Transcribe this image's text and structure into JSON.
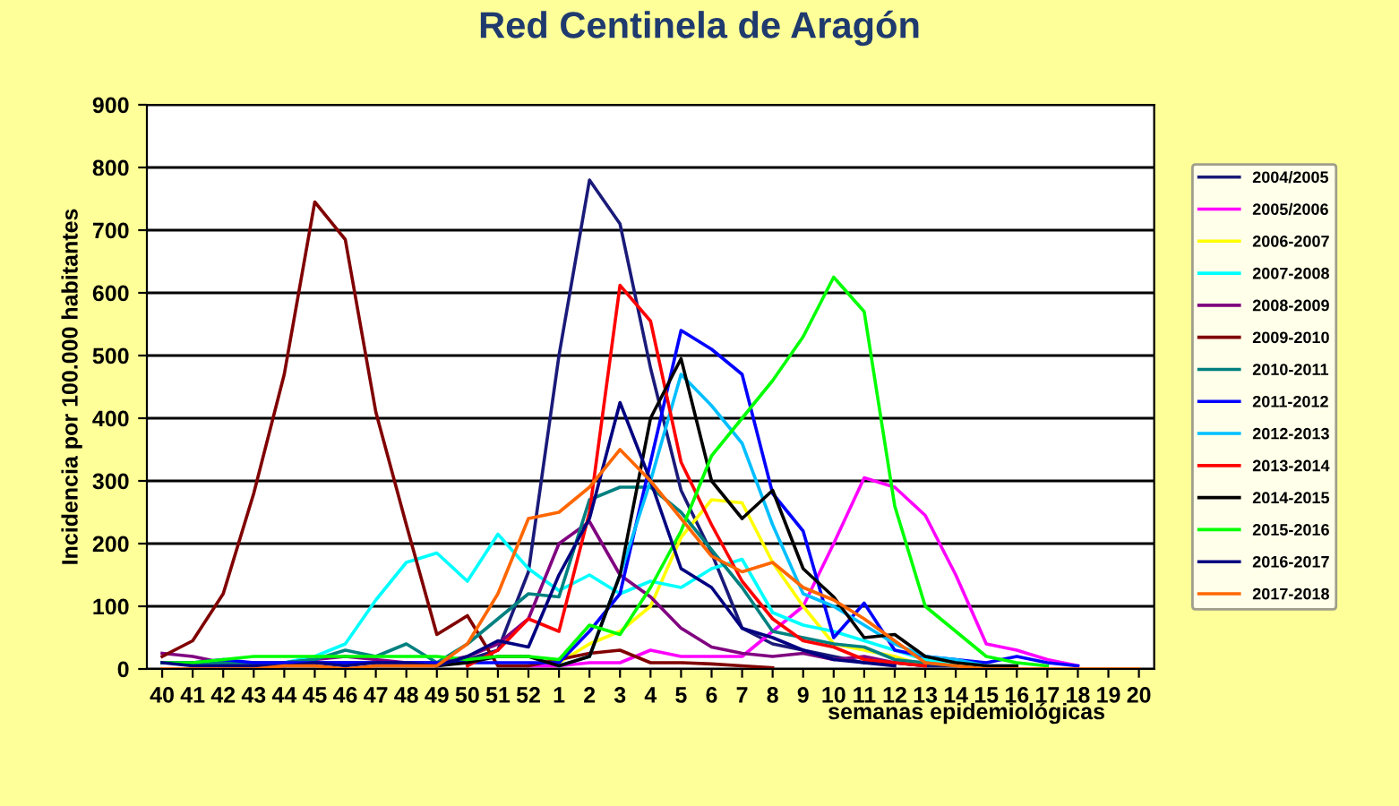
{
  "chart_data": {
    "type": "line",
    "title": "Red Centinela de Aragón",
    "xlabel": "semanas epidemiológicas",
    "ylabel": "Incidencia por 100.000 habitantes",
    "categories": [
      "40",
      "41",
      "42",
      "43",
      "44",
      "45",
      "46",
      "47",
      "48",
      "49",
      "50",
      "51",
      "52",
      "1",
      "2",
      "3",
      "4",
      "5",
      "6",
      "7",
      "8",
      "9",
      "10",
      "11",
      "12",
      "13",
      "14",
      "15",
      "16",
      "17",
      "18",
      "19",
      "20"
    ],
    "ylim": [
      0,
      900
    ],
    "yticks": [
      0,
      100,
      200,
      300,
      400,
      500,
      600,
      700,
      800,
      900
    ],
    "grid": "y",
    "legend": "right",
    "marker": "none",
    "line_style": "solid",
    "series": [
      {
        "name": "2004/2005",
        "color": "#1a1a7a",
        "values": [
          10,
          10,
          10,
          10,
          10,
          10,
          10,
          10,
          10,
          10,
          15,
          30,
          155,
          500,
          780,
          710,
          480,
          285,
          185,
          65,
          40,
          30,
          20,
          10,
          10,
          5,
          5,
          null,
          null,
          null,
          null,
          null,
          null
        ]
      },
      {
        "name": "2005/2006",
        "color": "#ff00ff",
        "values": [
          null,
          null,
          null,
          null,
          null,
          null,
          null,
          null,
          null,
          null,
          null,
          null,
          5,
          5,
          10,
          10,
          30,
          20,
          20,
          20,
          60,
          100,
          200,
          305,
          290,
          245,
          150,
          40,
          30,
          15,
          5,
          null,
          null
        ]
      },
      {
        "name": "2006-2007",
        "color": "#ffff00",
        "values": [
          null,
          null,
          null,
          null,
          null,
          null,
          null,
          null,
          null,
          null,
          null,
          null,
          null,
          10,
          40,
          60,
          100,
          210,
          270,
          265,
          170,
          100,
          40,
          30,
          20,
          5,
          null,
          null,
          null,
          null,
          null,
          null,
          null
        ]
      },
      {
        "name": "2007-2008",
        "color": "#00ffff",
        "values": [
          null,
          null,
          null,
          null,
          10,
          20,
          40,
          110,
          170,
          185,
          140,
          215,
          160,
          125,
          150,
          120,
          140,
          130,
          160,
          175,
          90,
          70,
          60,
          45,
          30,
          15,
          10,
          5,
          null,
          null,
          null,
          null,
          null
        ]
      },
      {
        "name": "2008-2009",
        "color": "#800080",
        "values": [
          25,
          20,
          10,
          10,
          10,
          15,
          20,
          15,
          10,
          10,
          20,
          40,
          80,
          200,
          235,
          150,
          115,
          65,
          35,
          25,
          20,
          25,
          15,
          20,
          10,
          5,
          null,
          null,
          null,
          null,
          null,
          null,
          null
        ]
      },
      {
        "name": "2009-2010",
        "color": "#800000",
        "values": [
          20,
          45,
          120,
          280,
          470,
          745,
          685,
          410,
          230,
          55,
          85,
          5,
          5,
          15,
          25,
          30,
          10,
          10,
          8,
          5,
          2,
          null,
          null,
          null,
          null,
          null,
          null,
          null,
          null,
          null,
          null,
          null,
          null
        ]
      },
      {
        "name": "2010-2011",
        "color": "#008080",
        "values": [
          10,
          10,
          10,
          10,
          10,
          15,
          30,
          20,
          40,
          10,
          40,
          80,
          120,
          115,
          270,
          290,
          290,
          250,
          190,
          130,
          60,
          50,
          40,
          35,
          15,
          10,
          5,
          null,
          null,
          null,
          null,
          null,
          null
        ]
      },
      {
        "name": "2011-2012",
        "color": "#0000ff",
        "values": [
          10,
          10,
          15,
          10,
          10,
          10,
          10,
          10,
          10,
          10,
          10,
          10,
          10,
          10,
          60,
          120,
          330,
          540,
          510,
          470,
          280,
          220,
          50,
          105,
          30,
          20,
          15,
          10,
          20,
          10,
          5,
          null,
          null
        ]
      },
      {
        "name": "2012-2013",
        "color": "#00bfff",
        "values": [
          null,
          null,
          null,
          null,
          null,
          null,
          null,
          null,
          null,
          null,
          null,
          null,
          null,
          5,
          20,
          150,
          300,
          470,
          420,
          360,
          230,
          120,
          100,
          70,
          40,
          20,
          15,
          5,
          5,
          null,
          null,
          null,
          null
        ]
      },
      {
        "name": "2013-2014",
        "color": "#ff0000",
        "values": [
          null,
          null,
          null,
          null,
          null,
          null,
          null,
          null,
          null,
          null,
          5,
          30,
          80,
          60,
          250,
          612,
          555,
          330,
          230,
          140,
          80,
          45,
          35,
          15,
          10,
          5,
          null,
          null,
          null,
          null,
          null,
          null,
          null
        ]
      },
      {
        "name": "2014-2015",
        "color": "#000000",
        "values": [
          null,
          null,
          null,
          null,
          null,
          null,
          null,
          null,
          null,
          5,
          10,
          20,
          20,
          5,
          20,
          150,
          400,
          495,
          300,
          240,
          285,
          160,
          115,
          50,
          55,
          20,
          10,
          5,
          5,
          null,
          null,
          null,
          null
        ]
      },
      {
        "name": "2015-2016",
        "color": "#00ff00",
        "values": [
          10,
          10,
          15,
          20,
          20,
          20,
          20,
          20,
          20,
          20,
          15,
          20,
          20,
          15,
          70,
          55,
          130,
          220,
          340,
          400,
          460,
          530,
          625,
          570,
          260,
          100,
          60,
          20,
          10,
          5,
          null,
          null,
          null
        ]
      },
      {
        "name": "2016-2017",
        "color": "#000080",
        "values": [
          10,
          5,
          5,
          5,
          5,
          10,
          5,
          10,
          10,
          5,
          20,
          45,
          35,
          150,
          240,
          425,
          300,
          160,
          130,
          65,
          50,
          30,
          15,
          10,
          5,
          null,
          null,
          null,
          null,
          null,
          null,
          null,
          null
        ]
      },
      {
        "name": "2017-2018",
        "color": "#ff6600",
        "values": [
          0,
          0,
          0,
          0,
          5,
          5,
          0,
          5,
          5,
          5,
          40,
          120,
          240,
          250,
          290,
          350,
          300,
          240,
          180,
          155,
          170,
          130,
          110,
          80,
          45,
          10,
          5,
          0,
          0,
          0,
          0,
          0,
          0
        ]
      }
    ]
  }
}
